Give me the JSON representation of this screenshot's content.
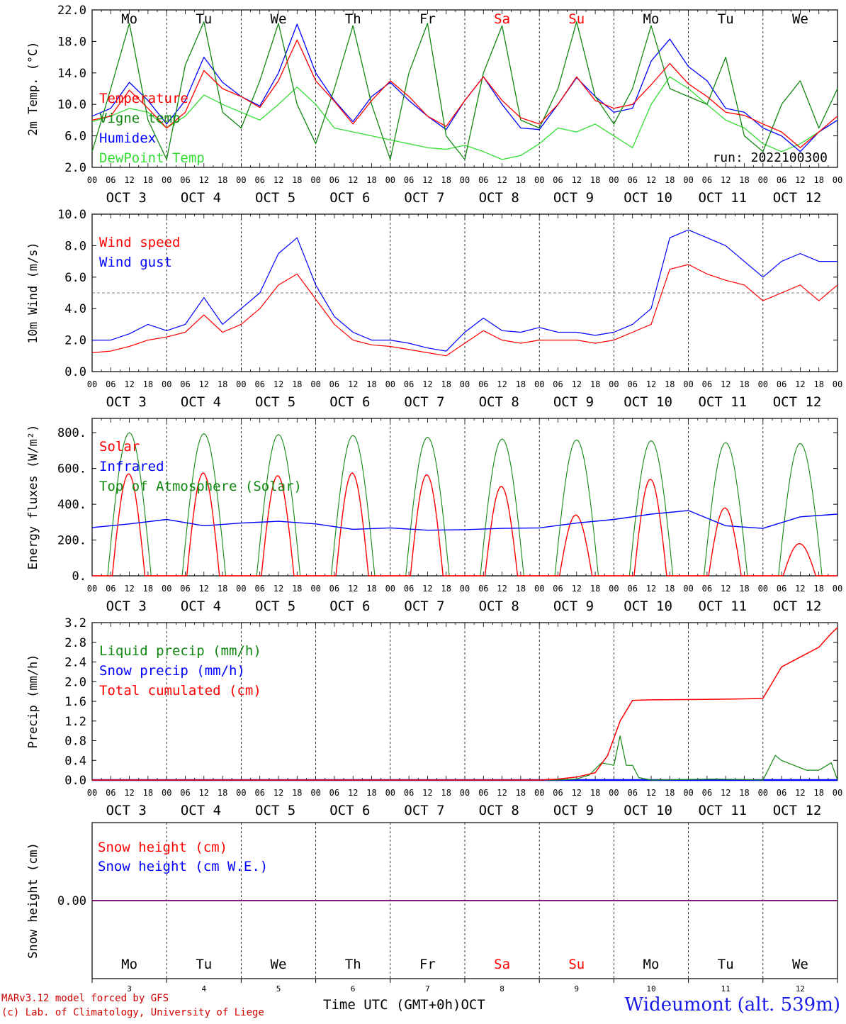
{
  "footer": {
    "model": "MARv3.12 model forced by GFS",
    "credit": "(c) Lab. of Climatology, University of Liege",
    "time_label": "Time UTC (GMT+0h)",
    "month": "OCT",
    "station": "Wideumont (alt. 539m)"
  },
  "days": {
    "names": [
      "Mo",
      "Tu",
      "We",
      "Th",
      "Fr",
      "Sa",
      "Su",
      "Mo",
      "Tu",
      "We"
    ],
    "weekend_flags": [
      false,
      false,
      false,
      false,
      false,
      true,
      true,
      false,
      false,
      false
    ],
    "dates": [
      "OCT  3",
      "OCT  4",
      "OCT  5",
      "OCT  6",
      "OCT  7",
      "OCT  8",
      "OCT  9",
      "OCT 10",
      "OCT 11",
      "OCT 12"
    ],
    "numbers": [
      "3",
      "4",
      "5",
      "6",
      "7",
      "8",
      "9",
      "10",
      "11",
      "12"
    ],
    "hour_ticks": [
      "00",
      "06",
      "12",
      "18"
    ],
    "final_hour": "00"
  },
  "colors": {
    "red": "#ff0000",
    "green": "#118811",
    "blue": "#0000ff",
    "lightgreen": "#33dd33",
    "weekend": "#ff0000",
    "purple": "#7a1a7a"
  },
  "chart_data": [
    {
      "type": "line",
      "ylabel": "2m Temp. (°C)",
      "yticks": [
        "2.0",
        "6.0",
        "10.0",
        "14.0",
        "18.0",
        "22.0"
      ],
      "ylim": [
        2,
        22
      ],
      "annotation": "run: 2022100300",
      "x_unit": "hours since OCT 3 00 UTC",
      "series": [
        {
          "name": "Temperature",
          "color": "red",
          "x": [
            0,
            6,
            12,
            18,
            24,
            30,
            36,
            42,
            48,
            54,
            60,
            66,
            72,
            78,
            84,
            90,
            96,
            102,
            108,
            114,
            120,
            126,
            132,
            138,
            144,
            150,
            156,
            162,
            168,
            174,
            180,
            186,
            192,
            198,
            204,
            210,
            216,
            222,
            228,
            234,
            240
          ],
          "values": [
            8.0,
            8.5,
            11.8,
            9.5,
            7.0,
            9.0,
            14.3,
            12.0,
            11.0,
            9.6,
            13.0,
            18.2,
            13.0,
            10.4,
            7.5,
            10.5,
            13.0,
            11.0,
            8.5,
            7.2,
            10.5,
            13.5,
            10.5,
            8.3,
            7.5,
            10.0,
            13.5,
            10.5,
            9.5,
            10.0,
            12.5,
            15.2,
            12.6,
            11.0,
            9.0,
            8.6,
            7.5,
            6.5,
            4.5,
            6.5,
            8.5
          ]
        },
        {
          "name": "Vigne temp",
          "color": "green",
          "x": [
            0,
            6,
            12,
            18,
            24,
            30,
            36,
            42,
            48,
            54,
            60,
            66,
            72,
            78,
            84,
            90,
            96,
            102,
            108,
            114,
            120,
            126,
            132,
            138,
            144,
            150,
            156,
            162,
            168,
            174,
            180,
            186,
            192,
            198,
            204,
            210,
            216,
            222,
            228,
            234,
            240
          ],
          "values": [
            4.0,
            12.0,
            20.3,
            8.0,
            3.0,
            15.0,
            20.5,
            9.0,
            7.0,
            13.0,
            20.3,
            10.0,
            5.0,
            12.0,
            20.0,
            10.0,
            3.0,
            14.0,
            20.3,
            6.0,
            3.0,
            14.0,
            20.0,
            8.0,
            7.0,
            12.0,
            20.5,
            11.0,
            7.5,
            12.0,
            20.0,
            12.0,
            11.0,
            10.0,
            16.0,
            6.0,
            4.0,
            10.0,
            13.0,
            7.0,
            12.0
          ]
        },
        {
          "name": "Humidex",
          "color": "blue",
          "x": [
            0,
            6,
            12,
            18,
            24,
            30,
            36,
            42,
            48,
            54,
            60,
            66,
            72,
            78,
            84,
            90,
            96,
            102,
            108,
            114,
            120,
            126,
            132,
            138,
            144,
            150,
            156,
            162,
            168,
            174,
            180,
            186,
            192,
            198,
            204,
            210,
            216,
            222,
            228,
            234,
            240
          ],
          "values": [
            8.5,
            9.5,
            12.8,
            10.5,
            7.5,
            10.5,
            16.0,
            12.8,
            11.0,
            9.8,
            14.0,
            20.2,
            14.0,
            10.5,
            7.8,
            11.0,
            12.8,
            10.5,
            8.5,
            6.8,
            10.5,
            13.5,
            10.0,
            7.0,
            6.8,
            10.0,
            13.4,
            11.0,
            9.0,
            9.5,
            15.5,
            18.3,
            14.8,
            13.0,
            9.5,
            9.0,
            7.0,
            6.0,
            4.0,
            6.5,
            8.0
          ]
        },
        {
          "name": "DewPoint Temp",
          "color": "lightgreen",
          "x": [
            0,
            6,
            12,
            18,
            24,
            30,
            36,
            42,
            48,
            54,
            60,
            66,
            72,
            78,
            84,
            90,
            96,
            102,
            108,
            114,
            120,
            126,
            132,
            138,
            144,
            150,
            156,
            162,
            168,
            174,
            180,
            186,
            192,
            198,
            204,
            210,
            216,
            222,
            228,
            234,
            240
          ],
          "values": [
            7.8,
            8.5,
            9.5,
            9.0,
            7.0,
            8.5,
            11.2,
            10.0,
            9.0,
            8.0,
            10.0,
            12.2,
            10.0,
            7.0,
            6.5,
            6.0,
            5.5,
            5.0,
            4.5,
            4.3,
            4.8,
            4.0,
            3.0,
            3.5,
            5.0,
            7.0,
            6.5,
            7.5,
            6.0,
            4.5,
            10.0,
            13.5,
            12.0,
            10.0,
            8.0,
            7.0,
            5.0,
            4.0,
            5.0,
            6.5,
            8.0
          ]
        }
      ]
    },
    {
      "type": "line",
      "ylabel": "10m Wind (m/s)",
      "yticks": [
        "0.0",
        "2.0",
        "4.0",
        "6.0",
        "8.0",
        "10.0"
      ],
      "ylim": [
        0,
        10
      ],
      "reference_line": 5,
      "x_unit": "hours since OCT 3 00 UTC",
      "series": [
        {
          "name": "Wind speed",
          "color": "red",
          "x": [
            0,
            6,
            12,
            18,
            24,
            30,
            36,
            42,
            48,
            54,
            60,
            66,
            72,
            78,
            84,
            90,
            96,
            102,
            108,
            114,
            120,
            126,
            132,
            138,
            144,
            150,
            156,
            162,
            168,
            174,
            180,
            186,
            192,
            198,
            204,
            210,
            216,
            222,
            228,
            234,
            240
          ],
          "values": [
            1.2,
            1.3,
            1.6,
            2.0,
            2.2,
            2.5,
            3.6,
            2.5,
            3.0,
            4.0,
            5.5,
            6.2,
            4.6,
            3.0,
            2.0,
            1.7,
            1.6,
            1.4,
            1.2,
            1.0,
            1.8,
            2.6,
            2.0,
            1.8,
            2.0,
            2.0,
            2.0,
            1.8,
            2.0,
            2.5,
            3.0,
            6.5,
            6.8,
            6.2,
            5.8,
            5.5,
            4.5,
            5.0,
            5.5,
            4.5,
            5.5
          ]
        },
        {
          "name": "Wind gust",
          "color": "blue",
          "x": [
            0,
            6,
            12,
            18,
            24,
            30,
            36,
            42,
            48,
            54,
            60,
            66,
            72,
            78,
            84,
            90,
            96,
            102,
            108,
            114,
            120,
            126,
            132,
            138,
            144,
            150,
            156,
            162,
            168,
            174,
            180,
            186,
            192,
            198,
            204,
            210,
            216,
            222,
            228,
            234,
            240
          ],
          "values": [
            2.0,
            2.0,
            2.4,
            3.0,
            2.6,
            3.0,
            4.7,
            3.0,
            4.0,
            5.0,
            7.5,
            8.5,
            5.5,
            3.5,
            2.5,
            2.0,
            2.0,
            1.8,
            1.5,
            1.3,
            2.5,
            3.4,
            2.6,
            2.5,
            2.8,
            2.5,
            2.5,
            2.3,
            2.5,
            3.0,
            4.0,
            8.5,
            9.0,
            8.5,
            8.0,
            7.0,
            6.0,
            7.0,
            7.5,
            7.0,
            7.0
          ]
        }
      ]
    },
    {
      "type": "line",
      "ylabel": "Energy fluxes (W/m²)",
      "yticks": [
        "0.",
        "200.",
        "400.",
        "600.",
        "800."
      ],
      "ylim": [
        0,
        880
      ],
      "x_unit": "hours since OCT 3 00 UTC",
      "series": [
        {
          "name": "Solar",
          "color": "red",
          "daily_peaks": [
            570,
            575,
            560,
            575,
            565,
            500,
            340,
            540,
            380,
            180
          ]
        },
        {
          "name": "Infrared",
          "color": "blue",
          "x": [
            0,
            12,
            24,
            36,
            48,
            60,
            72,
            84,
            96,
            108,
            120,
            132,
            144,
            156,
            168,
            180,
            192,
            204,
            216,
            228,
            240
          ],
          "values": [
            270,
            290,
            315,
            280,
            295,
            305,
            290,
            260,
            268,
            255,
            258,
            265,
            268,
            295,
            315,
            345,
            365,
            280,
            265,
            330,
            345
          ]
        },
        {
          "name": "Top of Atmosphere (Solar)",
          "color": "green",
          "daily_peaks": [
            800,
            795,
            790,
            785,
            775,
            765,
            760,
            755,
            745,
            740
          ]
        }
      ]
    },
    {
      "type": "line",
      "ylabel": "Precip (mm/h)",
      "yticks": [
        "0.0",
        "0.4",
        "0.8",
        "1.2",
        "1.6",
        "2.0",
        "2.4",
        "2.8",
        "3.2"
      ],
      "ylim": [
        0,
        3.2
      ],
      "x_unit": "hours since OCT 3 00 UTC",
      "series": [
        {
          "name": "Liquid precip (mm/h)",
          "color": "green",
          "x": [
            0,
            150,
            156,
            160,
            164,
            168,
            170,
            172,
            174,
            176,
            180,
            200,
            210,
            216,
            220,
            222,
            226,
            230,
            234,
            238,
            240
          ],
          "values": [
            0,
            0,
            0.02,
            0.1,
            0.35,
            0.3,
            0.9,
            0.3,
            0.3,
            0.05,
            0,
            0.02,
            0.01,
            0,
            0.5,
            0.4,
            0.3,
            0.2,
            0.2,
            0.35,
            0
          ]
        },
        {
          "name": "Snow precip (mm/h)",
          "color": "blue",
          "x": [
            0,
            240
          ],
          "values": [
            0,
            0
          ]
        },
        {
          "name": "Total cumulated (cm)",
          "color": "red",
          "x": [
            0,
            144,
            150,
            156,
            162,
            166,
            170,
            174,
            180,
            198,
            210,
            216,
            222,
            228,
            234,
            238,
            240
          ],
          "values": [
            0,
            0,
            0.02,
            0.06,
            0.15,
            0.5,
            1.2,
            1.62,
            1.63,
            1.64,
            1.65,
            1.66,
            2.3,
            2.5,
            2.7,
            2.98,
            3.1
          ]
        }
      ]
    },
    {
      "type": "line",
      "ylabel": "Snow height (cm)",
      "yticks": [
        "0.00"
      ],
      "series": [
        {
          "name": "Snow height (cm)",
          "color": "red",
          "x": [
            0,
            240
          ],
          "values": [
            0,
            0
          ]
        },
        {
          "name": "Snow height (cm W.E.)",
          "color": "blue",
          "x": [
            0,
            240
          ],
          "values": [
            0,
            0
          ]
        }
      ]
    }
  ]
}
